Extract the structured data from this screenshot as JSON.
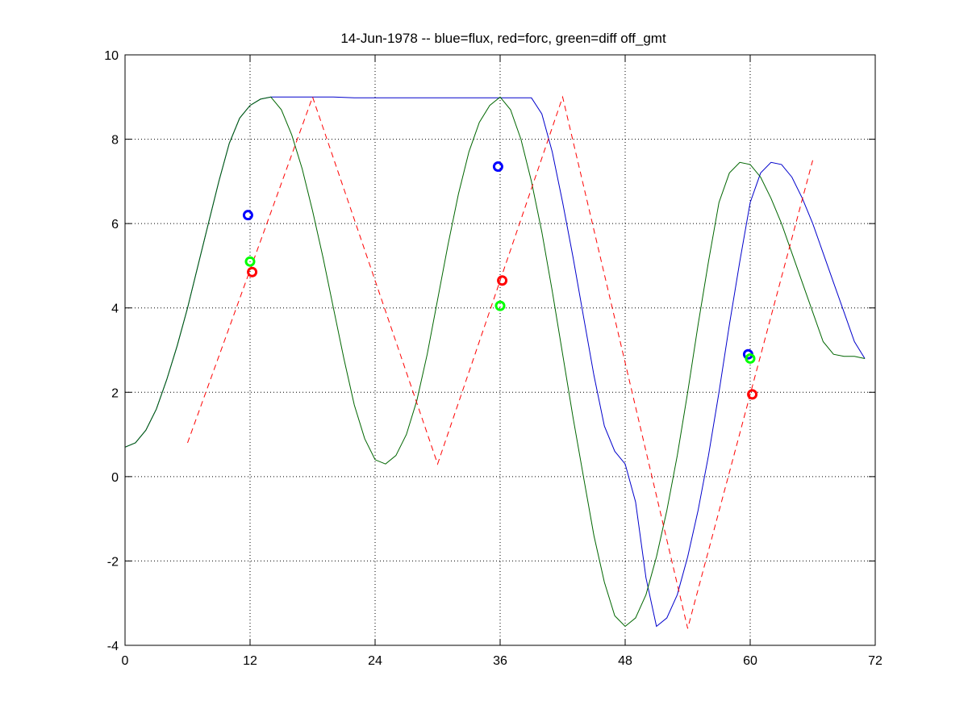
{
  "chart_data": {
    "type": "line",
    "title": "14-Jun-1978 -- blue=flux, red=forc, green=diff off_gmt",
    "xlabel": "",
    "ylabel": "",
    "xlim": [
      0,
      72
    ],
    "ylim": [
      -4,
      10
    ],
    "x_ticks": [
      0,
      12,
      24,
      36,
      48,
      60,
      72
    ],
    "y_ticks": [
      -4,
      -2,
      0,
      2,
      4,
      6,
      8,
      10
    ],
    "grid": true,
    "series": [
      {
        "color": "#0000cc",
        "style": "solid",
        "x": [
          0,
          1,
          2,
          3,
          4,
          5,
          6,
          7,
          8,
          9,
          10,
          11,
          12,
          13,
          14,
          15,
          16,
          18,
          20,
          22,
          24,
          26,
          28,
          30,
          32,
          34,
          36,
          37,
          38,
          39,
          40,
          41,
          42,
          43,
          44,
          45,
          46,
          47,
          48,
          49,
          50,
          51,
          52,
          53,
          54,
          55,
          56,
          57,
          58,
          59,
          60,
          61,
          62,
          63,
          64,
          65,
          66,
          67,
          68,
          69,
          70,
          71
        ],
        "y": [
          0.7,
          0.8,
          1.1,
          1.6,
          2.3,
          3.1,
          4.0,
          5.0,
          6.0,
          7.0,
          7.9,
          8.5,
          8.8,
          8.95,
          9.0,
          9.0,
          9.0,
          9.0,
          9.0,
          8.98,
          8.98,
          8.98,
          8.98,
          8.98,
          8.98,
          8.98,
          8.98,
          8.98,
          8.98,
          8.98,
          8.6,
          7.7,
          6.5,
          5.2,
          3.8,
          2.4,
          1.2,
          0.6,
          0.3,
          -0.6,
          -2.4,
          -3.55,
          -3.35,
          -2.8,
          -1.9,
          -0.8,
          0.5,
          2.0,
          3.6,
          5.1,
          6.5,
          7.2,
          7.45,
          7.4,
          7.1,
          6.6,
          6.0,
          5.3,
          4.6,
          3.9,
          3.2,
          2.8
        ]
      },
      {
        "color": "#006600",
        "style": "solid",
        "x": [
          0,
          1,
          2,
          3,
          4,
          5,
          6,
          7,
          8,
          9,
          10,
          11,
          12,
          13,
          14,
          15,
          16,
          17,
          18,
          19,
          20,
          21,
          22,
          23,
          24,
          25,
          26,
          27,
          28,
          29,
          30,
          31,
          32,
          33,
          34,
          35,
          36,
          37,
          38,
          39,
          40,
          41,
          42,
          43,
          44,
          45,
          46,
          47,
          48,
          49,
          50,
          51,
          52,
          53,
          54,
          55,
          56,
          57,
          58,
          59,
          60,
          61,
          62,
          63,
          64,
          65,
          66,
          67,
          68,
          69,
          70,
          71
        ],
        "y": [
          0.7,
          0.8,
          1.1,
          1.6,
          2.3,
          3.1,
          4.0,
          5.0,
          6.0,
          7.0,
          7.9,
          8.5,
          8.8,
          8.95,
          9.0,
          8.7,
          8.1,
          7.3,
          6.3,
          5.2,
          4.0,
          2.8,
          1.7,
          0.9,
          0.4,
          0.3,
          0.5,
          1.0,
          1.8,
          2.9,
          4.2,
          5.5,
          6.7,
          7.7,
          8.4,
          8.8,
          9.0,
          8.7,
          8.0,
          7.0,
          5.8,
          4.4,
          2.9,
          1.4,
          0.0,
          -1.4,
          -2.5,
          -3.3,
          -3.55,
          -3.35,
          -2.8,
          -1.9,
          -0.8,
          0.5,
          2.0,
          3.6,
          5.1,
          6.5,
          7.2,
          7.45,
          7.4,
          7.1,
          6.6,
          6.0,
          5.3,
          4.6,
          3.9,
          3.2,
          2.9,
          2.85,
          2.85,
          2.8
        ]
      },
      {
        "color": "#ff0000",
        "style": "dashed",
        "x": [
          6,
          18,
          30,
          42,
          54,
          66
        ],
        "y": [
          0.8,
          9.0,
          0.3,
          9.0,
          -3.6,
          7.5
        ]
      }
    ],
    "markers": [
      {
        "color": "#0000ff",
        "x": 11.8,
        "y": 6.2
      },
      {
        "color": "#00ff00",
        "x": 12.0,
        "y": 5.1
      },
      {
        "color": "#ff0000",
        "x": 12.2,
        "y": 4.85
      },
      {
        "color": "#0000ff",
        "x": 35.8,
        "y": 7.35
      },
      {
        "color": "#ff0000",
        "x": 36.2,
        "y": 4.65
      },
      {
        "color": "#00ff00",
        "x": 36.0,
        "y": 4.05
      },
      {
        "color": "#0000ff",
        "x": 59.8,
        "y": 2.9
      },
      {
        "color": "#00ff00",
        "x": 60.0,
        "y": 2.8
      },
      {
        "color": "#ff0000",
        "x": 60.2,
        "y": 1.95
      }
    ]
  }
}
